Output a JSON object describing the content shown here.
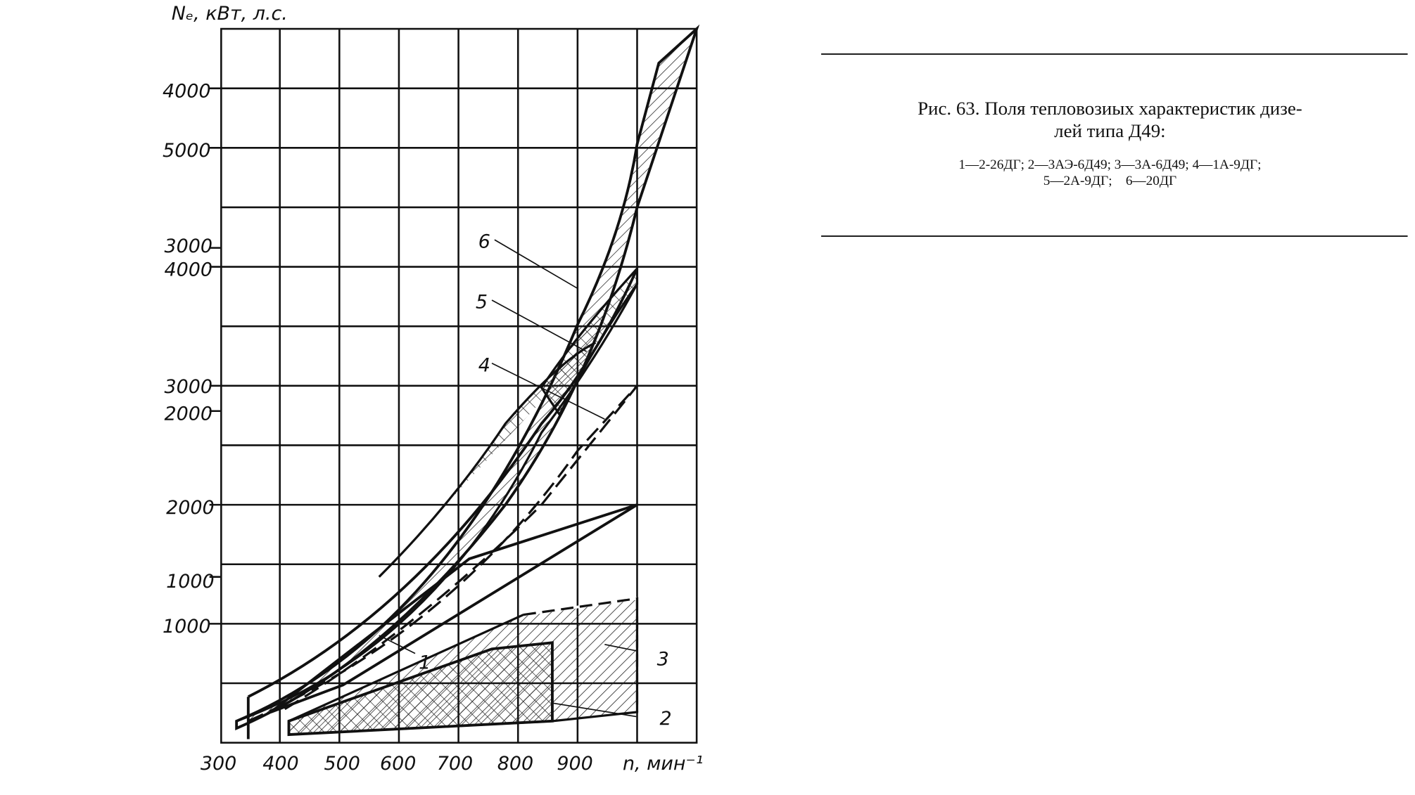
{
  "axis": {
    "y_title": "Nₑ, кВт, л.с.",
    "y_labels": [
      "4000",
      "5000",
      "3000",
      "4000",
      "3000",
      "2000",
      "2000",
      "1000",
      "1000"
    ],
    "x_labels": [
      "300",
      "400",
      "500",
      "600",
      "700",
      "800",
      "900"
    ],
    "x_title": "n, мин⁻¹"
  },
  "curve_labels": [
    "6",
    "5",
    "4",
    "1",
    "3",
    "2"
  ],
  "caption": {
    "title_lines": [
      "Рис. 63. Поля тепловозиых характеристик дизе-",
      "лей типа Д49:"
    ],
    "legend_lines": [
      "1—2-26ДГ; 2—3АЭ-6Д49; 3—3А-6Д49; 4—1А-9ДГ;",
      "5—2А-9ДГ;    6—20ДГ"
    ]
  }
}
